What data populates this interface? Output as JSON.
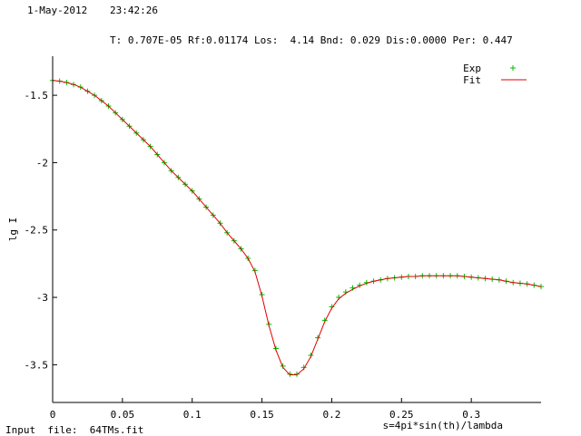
{
  "header": {
    "date": "1-May-2012",
    "time": "23:42:26",
    "fit_stats": "T: 0.707E-05 Rf:0.01174 Los:  4.14 Bnd: 0.029 Dis:0.0000 Per: 0.447"
  },
  "footer": {
    "input_file": "Input  file:  64TMs.fit"
  },
  "colors": {
    "exp": "#00c000",
    "fit": "#e00000",
    "axis": "#000000"
  },
  "chart_data": {
    "type": "line",
    "xlabel": "s=4pi*sin(th)/lambda",
    "ylabel": "lg I",
    "xlim": [
      0,
      0.35
    ],
    "ylim": [
      -3.78,
      -1.21
    ],
    "xticks": [
      "0",
      "0.05",
      "0.1",
      "0.15",
      "0.2",
      "0.25",
      "0.3"
    ],
    "xtick_values": [
      0,
      0.05,
      0.1,
      0.15,
      0.2,
      0.25,
      0.3
    ],
    "yticks": [
      "-1.5",
      "-2",
      "-2.5",
      "-3",
      "-3.5"
    ],
    "ytick_values": [
      -1.5,
      -2,
      -2.5,
      -3,
      -3.5
    ],
    "legend_position": "top-right",
    "series": [
      {
        "name": "Exp",
        "style": "points",
        "x": [
          0,
          0.005,
          0.01,
          0.015,
          0.02,
          0.025,
          0.03,
          0.035,
          0.04,
          0.045,
          0.05,
          0.055,
          0.06,
          0.065,
          0.07,
          0.075,
          0.08,
          0.085,
          0.09,
          0.095,
          0.1,
          0.105,
          0.11,
          0.115,
          0.12,
          0.125,
          0.13,
          0.135,
          0.14,
          0.145,
          0.15,
          0.155,
          0.16,
          0.165,
          0.17,
          0.175,
          0.18,
          0.185,
          0.19,
          0.195,
          0.2,
          0.205,
          0.21,
          0.215,
          0.22,
          0.225,
          0.23,
          0.235,
          0.24,
          0.245,
          0.25,
          0.255,
          0.26,
          0.265,
          0.27,
          0.275,
          0.28,
          0.285,
          0.29,
          0.295,
          0.3,
          0.305,
          0.31,
          0.315,
          0.32,
          0.325,
          0.33,
          0.335,
          0.34,
          0.345,
          0.35
        ],
        "y": [
          -1.39,
          -1.395,
          -1.405,
          -1.42,
          -1.44,
          -1.47,
          -1.5,
          -1.54,
          -1.58,
          -1.63,
          -1.68,
          -1.73,
          -1.78,
          -1.83,
          -1.88,
          -1.94,
          -2.0,
          -2.06,
          -2.11,
          -2.16,
          -2.21,
          -2.27,
          -2.33,
          -2.39,
          -2.45,
          -2.52,
          -2.58,
          -2.64,
          -2.71,
          -2.8,
          -2.98,
          -3.2,
          -3.38,
          -3.51,
          -3.57,
          -3.57,
          -3.52,
          -3.43,
          -3.3,
          -3.17,
          -3.07,
          -3.0,
          -2.96,
          -2.93,
          -2.91,
          -2.89,
          -2.88,
          -2.87,
          -2.86,
          -2.855,
          -2.85,
          -2.845,
          -2.845,
          -2.84,
          -2.84,
          -2.84,
          -2.84,
          -2.84,
          -2.84,
          -2.845,
          -2.85,
          -2.855,
          -2.86,
          -2.865,
          -2.87,
          -2.88,
          -2.89,
          -2.895,
          -2.9,
          -2.91,
          -2.92
        ]
      },
      {
        "name": "Fit",
        "style": "line",
        "x": [
          0,
          0.005,
          0.01,
          0.015,
          0.02,
          0.025,
          0.03,
          0.035,
          0.04,
          0.045,
          0.05,
          0.055,
          0.06,
          0.065,
          0.07,
          0.075,
          0.08,
          0.085,
          0.09,
          0.095,
          0.1,
          0.105,
          0.11,
          0.115,
          0.12,
          0.125,
          0.13,
          0.135,
          0.14,
          0.145,
          0.15,
          0.155,
          0.16,
          0.165,
          0.17,
          0.175,
          0.18,
          0.185,
          0.19,
          0.195,
          0.2,
          0.205,
          0.21,
          0.215,
          0.22,
          0.225,
          0.23,
          0.235,
          0.24,
          0.245,
          0.25,
          0.255,
          0.26,
          0.265,
          0.27,
          0.275,
          0.28,
          0.285,
          0.29,
          0.295,
          0.3,
          0.305,
          0.31,
          0.315,
          0.32,
          0.325,
          0.33,
          0.335,
          0.34,
          0.345,
          0.35
        ],
        "y": [
          -1.39,
          -1.395,
          -1.405,
          -1.42,
          -1.44,
          -1.47,
          -1.5,
          -1.54,
          -1.58,
          -1.63,
          -1.68,
          -1.73,
          -1.78,
          -1.83,
          -1.88,
          -1.94,
          -2.0,
          -2.06,
          -2.11,
          -2.16,
          -2.21,
          -2.27,
          -2.33,
          -2.39,
          -2.45,
          -2.52,
          -2.58,
          -2.64,
          -2.71,
          -2.81,
          -2.99,
          -3.21,
          -3.39,
          -3.52,
          -3.575,
          -3.575,
          -3.53,
          -3.44,
          -3.31,
          -3.18,
          -3.08,
          -3.01,
          -2.97,
          -2.94,
          -2.915,
          -2.895,
          -2.88,
          -2.87,
          -2.86,
          -2.855,
          -2.85,
          -2.845,
          -2.845,
          -2.84,
          -2.84,
          -2.84,
          -2.84,
          -2.84,
          -2.84,
          -2.845,
          -2.85,
          -2.855,
          -2.86,
          -2.865,
          -2.87,
          -2.88,
          -2.89,
          -2.895,
          -2.9,
          -2.91,
          -2.92
        ]
      }
    ]
  }
}
